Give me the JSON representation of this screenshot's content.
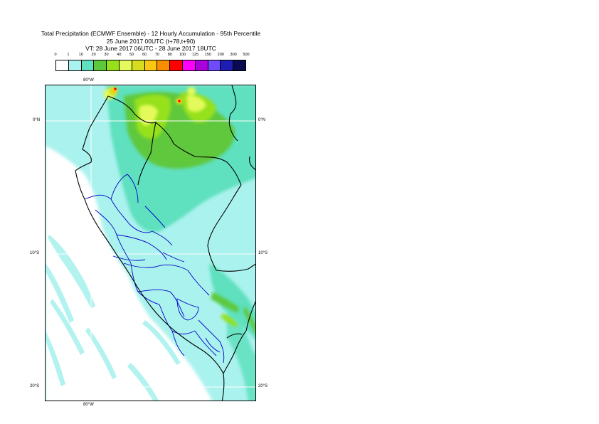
{
  "title": {
    "line1": "Total Precipitation (ECMWF Ensemble) - 12 Hourly Accumulation - 95th Percentile",
    "line2": "25 June 2017 00UTC (t+78,t+90)",
    "line3": "VT: 28 June 2017 06UTC - 28 June 2017 18UTC"
  },
  "legend": {
    "labels": [
      "0",
      "1",
      "10",
      "20",
      "30",
      "40",
      "50",
      "60",
      "70",
      "80",
      "100",
      "125",
      "150",
      "200",
      "300",
      "500"
    ],
    "colors": [
      "#ffffff",
      "#aaf2ee",
      "#5fe0be",
      "#5ec83c",
      "#96e01a",
      "#e4fa5a",
      "#d8dc1e",
      "#fac814",
      "#fa8c00",
      "#ff0000",
      "#ff00ff",
      "#aa00dc",
      "#6e4cfa",
      "#1e1eb4",
      "#0a0a50"
    ]
  },
  "axes": {
    "lon_top": "80°W",
    "lon_bottom": "80°W",
    "lat_left": [
      "0°N",
      "10°S",
      "20°S"
    ],
    "lat_right": [
      "0°N",
      "10°S",
      "20°S"
    ]
  },
  "colors": {
    "land_border": "#000000",
    "region_border": "#0000c8",
    "gridline": "#ffffff"
  }
}
